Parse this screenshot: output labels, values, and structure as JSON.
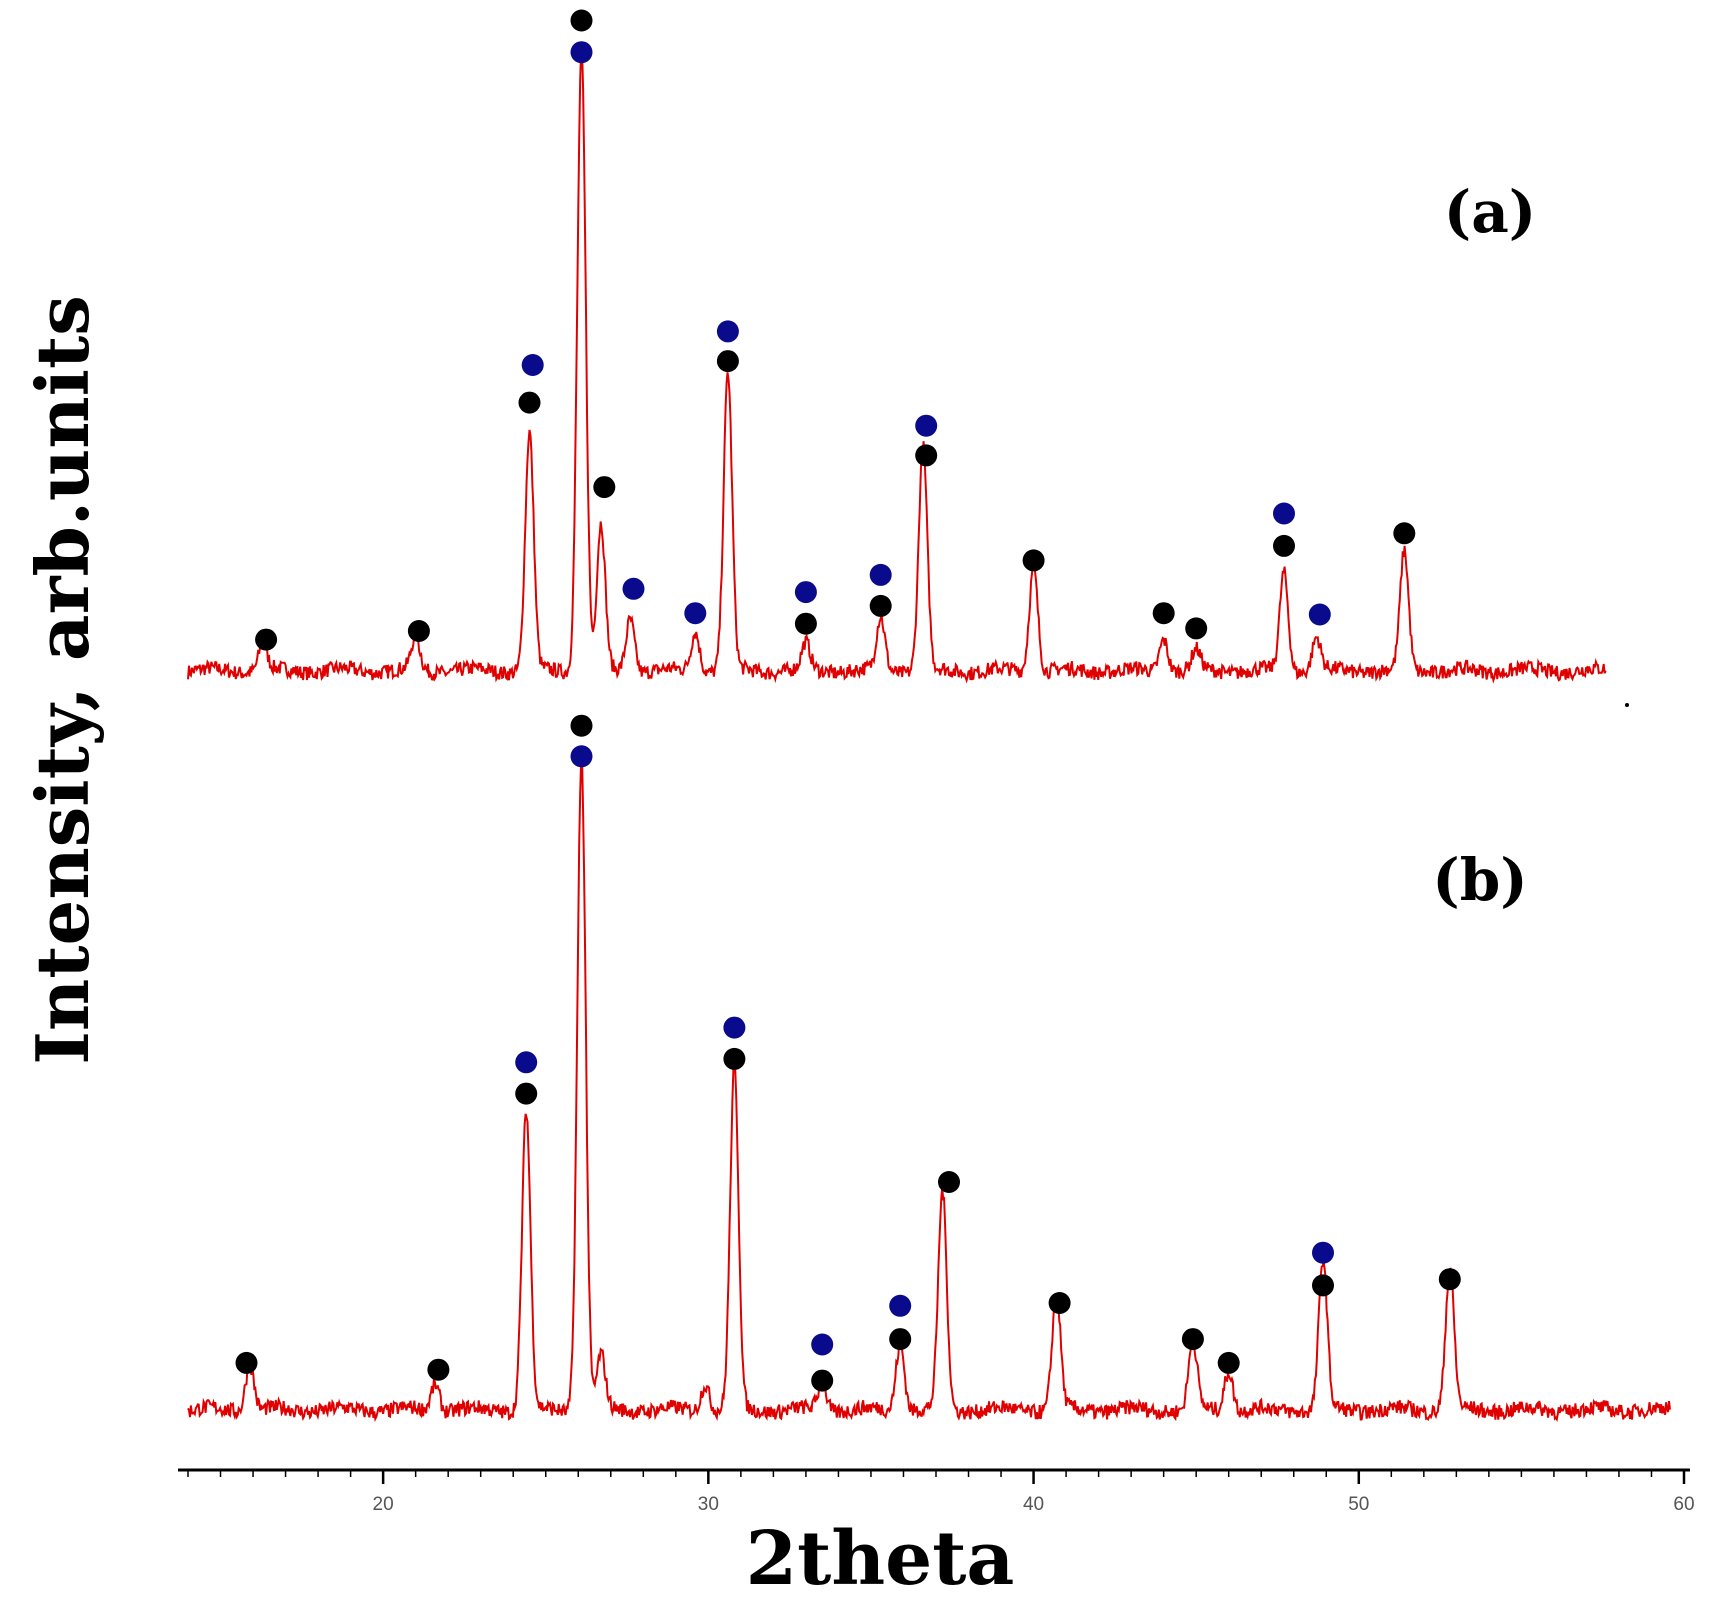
{
  "chart_data": {
    "type": "line",
    "xlabel": "2theta",
    "ylabel": "Intensity, arb.units",
    "xlim": [
      14,
      60
    ],
    "x_ticks": [
      20,
      30,
      40,
      50,
      60
    ],
    "ylim": [
      0,
      100
    ],
    "grid": false,
    "colors": {
      "line": "#e00000",
      "black_marker": "#000000",
      "blue_marker": "#0a0a8c"
    },
    "panels": [
      {
        "label": "(a)",
        "baseline": 4,
        "x_end": 57.6,
        "peaks": [
          {
            "x": 16.3,
            "y": 8
          },
          {
            "x": 21.0,
            "y": 9
          },
          {
            "x": 24.5,
            "y": 40
          },
          {
            "x": 26.1,
            "y": 98
          },
          {
            "x": 26.7,
            "y": 26
          },
          {
            "x": 27.6,
            "y": 12
          },
          {
            "x": 29.6,
            "y": 10
          },
          {
            "x": 30.6,
            "y": 49
          },
          {
            "x": 33.0,
            "y": 8
          },
          {
            "x": 35.3,
            "y": 12
          },
          {
            "x": 36.6,
            "y": 38
          },
          {
            "x": 40.0,
            "y": 20
          },
          {
            "x": 44.0,
            "y": 9
          },
          {
            "x": 45.0,
            "y": 7
          },
          {
            "x": 47.7,
            "y": 19
          },
          {
            "x": 48.7,
            "y": 9
          },
          {
            "x": 51.4,
            "y": 22
          }
        ],
        "markers": [
          {
            "x": 16.4,
            "y": 8.7,
            "phase": "black"
          },
          {
            "x": 21.1,
            "y": 10.0,
            "phase": "black"
          },
          {
            "x": 24.5,
            "y": 44.6,
            "phase": "black"
          },
          {
            "x": 24.6,
            "y": 50.3,
            "phase": "blue"
          },
          {
            "x": 26.1,
            "y": 102.5,
            "phase": "black"
          },
          {
            "x": 26.1,
            "y": 97.7,
            "phase": "blue"
          },
          {
            "x": 26.8,
            "y": 31.8,
            "phase": "black"
          },
          {
            "x": 27.7,
            "y": 16.4,
            "phase": "blue"
          },
          {
            "x": 29.6,
            "y": 12.7,
            "phase": "blue"
          },
          {
            "x": 30.6,
            "y": 50.9,
            "phase": "black"
          },
          {
            "x": 30.6,
            "y": 55.4,
            "phase": "blue"
          },
          {
            "x": 33.0,
            "y": 11.1,
            "phase": "black"
          },
          {
            "x": 33.0,
            "y": 15.9,
            "phase": "blue"
          },
          {
            "x": 35.3,
            "y": 13.8,
            "phase": "black"
          },
          {
            "x": 35.3,
            "y": 18.5,
            "phase": "blue"
          },
          {
            "x": 36.7,
            "y": 36.6,
            "phase": "black"
          },
          {
            "x": 36.7,
            "y": 41.1,
            "phase": "blue"
          },
          {
            "x": 40.0,
            "y": 20.7,
            "phase": "black"
          },
          {
            "x": 44.0,
            "y": 12.7,
            "phase": "black"
          },
          {
            "x": 45.0,
            "y": 10.4,
            "phase": "black"
          },
          {
            "x": 47.7,
            "y": 22.9,
            "phase": "black"
          },
          {
            "x": 47.7,
            "y": 27.8,
            "phase": "blue"
          },
          {
            "x": 48.8,
            "y": 12.5,
            "phase": "blue"
          },
          {
            "x": 51.4,
            "y": 24.8,
            "phase": "black"
          }
        ]
      },
      {
        "label": "(b)",
        "baseline": 4,
        "x_end": 59.6,
        "peaks": [
          {
            "x": 15.9,
            "y": 11
          },
          {
            "x": 21.6,
            "y": 8
          },
          {
            "x": 24.4,
            "y": 48
          },
          {
            "x": 26.1,
            "y": 100
          },
          {
            "x": 26.7,
            "y": 12
          },
          {
            "x": 29.9,
            "y": 8
          },
          {
            "x": 30.8,
            "y": 54
          },
          {
            "x": 33.5,
            "y": 8
          },
          {
            "x": 35.9,
            "y": 14
          },
          {
            "x": 37.2,
            "y": 36
          },
          {
            "x": 40.7,
            "y": 21
          },
          {
            "x": 44.9,
            "y": 14
          },
          {
            "x": 46.0,
            "y": 10
          },
          {
            "x": 48.9,
            "y": 26
          },
          {
            "x": 52.8,
            "y": 25
          }
        ],
        "markers": [
          {
            "x": 15.8,
            "y": 10.9,
            "phase": "black"
          },
          {
            "x": 21.7,
            "y": 9.9,
            "phase": "black"
          },
          {
            "x": 24.4,
            "y": 50.5,
            "phase": "black"
          },
          {
            "x": 24.4,
            "y": 55.1,
            "phase": "blue"
          },
          {
            "x": 26.1,
            "y": 104.6,
            "phase": "black"
          },
          {
            "x": 26.1,
            "y": 100.1,
            "phase": "blue"
          },
          {
            "x": 30.8,
            "y": 55.6,
            "phase": "black"
          },
          {
            "x": 30.8,
            "y": 60.2,
            "phase": "blue"
          },
          {
            "x": 33.5,
            "y": 8.3,
            "phase": "black"
          },
          {
            "x": 33.5,
            "y": 13.6,
            "phase": "blue"
          },
          {
            "x": 35.9,
            "y": 14.4,
            "phase": "black"
          },
          {
            "x": 35.9,
            "y": 19.3,
            "phase": "blue"
          },
          {
            "x": 37.4,
            "y": 37.5,
            "phase": "black"
          },
          {
            "x": 40.8,
            "y": 19.7,
            "phase": "black"
          },
          {
            "x": 44.9,
            "y": 14.4,
            "phase": "black"
          },
          {
            "x": 46.0,
            "y": 10.9,
            "phase": "black"
          },
          {
            "x": 48.9,
            "y": 22.3,
            "phase": "black"
          },
          {
            "x": 48.9,
            "y": 27.1,
            "phase": "blue"
          },
          {
            "x": 52.8,
            "y": 23.2,
            "phase": "black"
          }
        ]
      }
    ]
  }
}
